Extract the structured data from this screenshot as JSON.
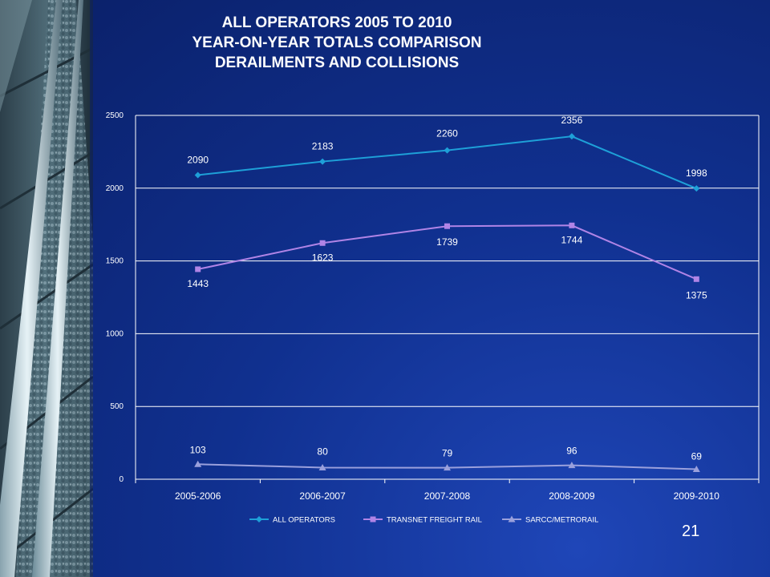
{
  "slide": {
    "title_lines": [
      "ALL OPERATORS 2005 TO 2010",
      "YEAR-ON-YEAR TOTALS COMPARISON",
      "DERAILMENTS AND COLLISIONS"
    ],
    "page_number": "21"
  },
  "colors": {
    "all_operators": "#1ea0d8",
    "transnet": "#b084e6",
    "sarcc": "#9aa0dc",
    "background": "#0f2c8a",
    "text": "#ffffff"
  },
  "chart_data": {
    "type": "line",
    "categories": [
      "2005-2006",
      "2006-2007",
      "2007-2008",
      "2008-2009",
      "2009-2010"
    ],
    "series": [
      {
        "name": "ALL OPERATORS",
        "values": [
          2090,
          2183,
          2260,
          2356,
          1998
        ],
        "marker": "diamond"
      },
      {
        "name": "TRANSNET FREIGHT RAIL",
        "values": [
          1443,
          1623,
          1739,
          1744,
          1375
        ],
        "marker": "square"
      },
      {
        "name": "SARCC/METRORAIL",
        "values": [
          103,
          80,
          79,
          96,
          69
        ],
        "marker": "triangle"
      }
    ],
    "ylim": [
      0,
      2500
    ],
    "yticks": [
      0,
      500,
      1000,
      1500,
      2000,
      2500
    ],
    "grid": true,
    "legend_position": "bottom"
  }
}
